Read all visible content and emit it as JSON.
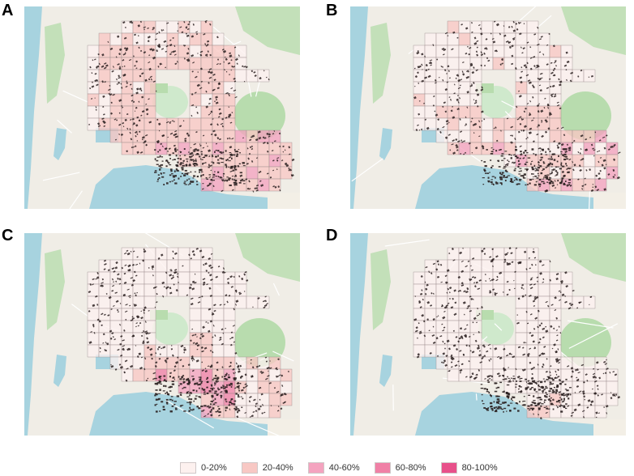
{
  "panels": [
    {
      "letter": "A",
      "fill_level": "mixed_high"
    },
    {
      "letter": "B",
      "fill_level": "mixed_mid"
    },
    {
      "letter": "C",
      "fill_level": "coast_high"
    },
    {
      "letter": "D",
      "fill_level": "low"
    }
  ],
  "legend": {
    "items": [
      {
        "label": "0-20%",
        "color": "#fdf1ef"
      },
      {
        "label": "20-40%",
        "color": "#f8c8c4"
      },
      {
        "label": "40-60%",
        "color": "#f4a3bf"
      },
      {
        "label": "60-80%",
        "color": "#f080a6"
      },
      {
        "label": "80-100%",
        "color": "#e8508a"
      }
    ]
  },
  "colors": {
    "sea": "#a7d3df",
    "land": "#f0ede6",
    "park": "#b8dcae",
    "road": "#ffffff",
    "building": "#2a2020"
  }
}
